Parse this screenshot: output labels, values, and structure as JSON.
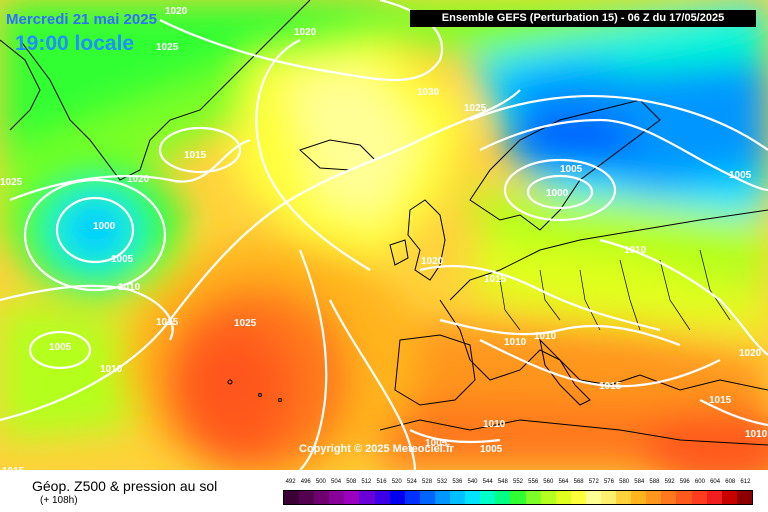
{
  "header": {
    "date": "Mercredi 21 mai 2025",
    "time": "19:00 locale",
    "model": "Ensemble GEFS  (Perturbation 15)  -  06 Z du 17/05/2025"
  },
  "copyright": "Copyright © 2025 Meteociel.fr",
  "legend": {
    "title": "Géop. Z500 & pression au sol",
    "subtitle": "(+ 108h)",
    "scale": [
      {
        "value": "492",
        "color": "#3b0034"
      },
      {
        "value": "496",
        "color": "#55004f"
      },
      {
        "value": "500",
        "color": "#6e0070"
      },
      {
        "value": "504",
        "color": "#870097"
      },
      {
        "value": "508",
        "color": "#9b00c0"
      },
      {
        "value": "512",
        "color": "#6a00d8"
      },
      {
        "value": "516",
        "color": "#3c00e6"
      },
      {
        "value": "520",
        "color": "#0000f0"
      },
      {
        "value": "524",
        "color": "#0032ff"
      },
      {
        "value": "528",
        "color": "#0064ff"
      },
      {
        "value": "532",
        "color": "#0096ff"
      },
      {
        "value": "536",
        "color": "#00c0ff"
      },
      {
        "value": "540",
        "color": "#00e4ff"
      },
      {
        "value": "544",
        "color": "#00ffc8"
      },
      {
        "value": "548",
        "color": "#00ff82"
      },
      {
        "value": "552",
        "color": "#32ff32"
      },
      {
        "value": "556",
        "color": "#7dff28"
      },
      {
        "value": "560",
        "color": "#b4ff1e"
      },
      {
        "value": "564",
        "color": "#e1ff1e"
      },
      {
        "value": "568",
        "color": "#ffff3c"
      },
      {
        "value": "572",
        "color": "#ffff96"
      },
      {
        "value": "576",
        "color": "#fff06e"
      },
      {
        "value": "580",
        "color": "#ffd23c"
      },
      {
        "value": "584",
        "color": "#ffb41e"
      },
      {
        "value": "588",
        "color": "#ff961e"
      },
      {
        "value": "592",
        "color": "#ff781e"
      },
      {
        "value": "596",
        "color": "#ff5a1e"
      },
      {
        "value": "600",
        "color": "#ff3c1e"
      },
      {
        "value": "604",
        "color": "#f01e1e"
      },
      {
        "value": "608",
        "color": "#c80000"
      },
      {
        "value": "612",
        "color": "#8c0000"
      }
    ]
  },
  "isobar_labels": [
    {
      "text": "1020",
      "place": "top-left"
    },
    {
      "text": "1025",
      "place": "top-left-2"
    },
    {
      "text": "1020",
      "place": "greenland-top"
    },
    {
      "text": "1030",
      "place": "north-atlantic"
    },
    {
      "text": "1025",
      "place": "norway-sea"
    },
    {
      "text": "1015",
      "place": "greenland"
    },
    {
      "text": "1020",
      "place": "greenland-south"
    },
    {
      "text": "1025",
      "place": "left-edge"
    },
    {
      "text": "1000",
      "place": "low-west"
    },
    {
      "text": "1005",
      "place": "low-west-ring"
    },
    {
      "text": "1010",
      "place": "low-west-ring-2"
    },
    {
      "text": "1015",
      "place": "mid-atlantic"
    },
    {
      "text": "1025",
      "place": "azores-high"
    },
    {
      "text": "1005",
      "place": "southwest"
    },
    {
      "text": "1010",
      "place": "southwest-2"
    },
    {
      "text": "1020",
      "place": "uk"
    },
    {
      "text": "1015",
      "place": "north-sea"
    },
    {
      "text": "1005",
      "place": "scandinavia"
    },
    {
      "text": "1000",
      "place": "baltic-low"
    },
    {
      "text": "1010",
      "place": "east-europe"
    },
    {
      "text": "1005",
      "place": "russia"
    },
    {
      "text": "1010",
      "place": "central-europe"
    },
    {
      "text": "1010",
      "place": "central-europe-2"
    },
    {
      "text": "1015",
      "place": "balkans"
    },
    {
      "text": "1020",
      "place": "east-edge"
    },
    {
      "text": "1015",
      "place": "turkey"
    },
    {
      "text": "1010",
      "place": "east-edge-bottom"
    },
    {
      "text": "1005",
      "place": "north-africa"
    },
    {
      "text": "1005",
      "place": "north-africa-2"
    },
    {
      "text": "1010",
      "place": "north-africa-3"
    },
    {
      "text": "1015",
      "place": "bottom-left"
    }
  ]
}
